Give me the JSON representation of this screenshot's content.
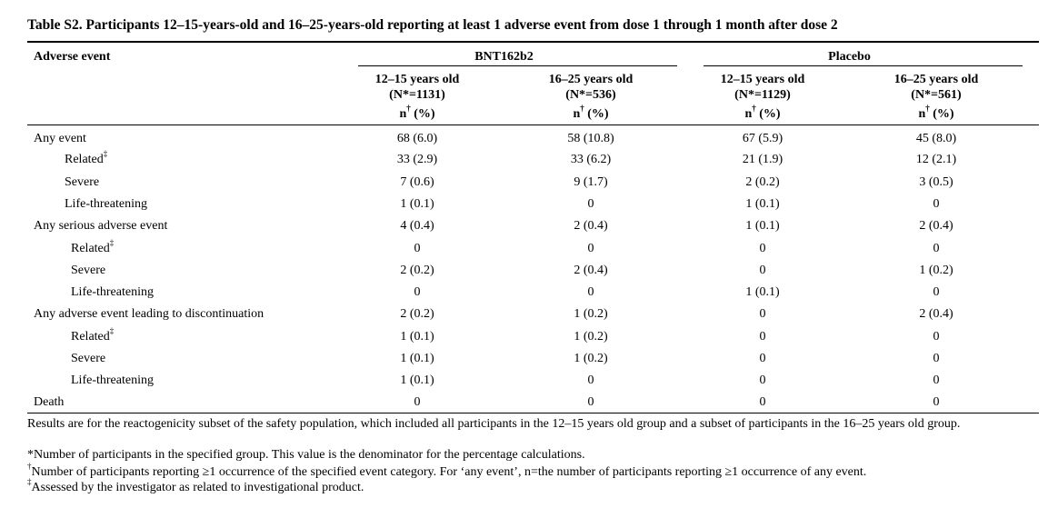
{
  "title": "Table S2. Participants 12–15-years-old and 16–25-years-old reporting at least 1 adverse event from dose 1 through 1 month after dose 2",
  "header": {
    "adverse_event_label": "Adverse event",
    "group_bnt": "BNT162b2",
    "group_placebo": "Placebo",
    "columns": [
      {
        "age": "12–15 years old",
        "n_total": "(N*=1131)",
        "stat_label": "n",
        "stat_sup": "†",
        "stat_pct": " (%)"
      },
      {
        "age": "16–25 years old",
        "n_total": "(N*=536)",
        "stat_label": "n",
        "stat_sup": "†",
        "stat_pct": " (%)"
      },
      {
        "age": "12–15 years old",
        "n_total": "(N*=1129)",
        "stat_label": "n",
        "stat_sup": "†",
        "stat_pct": " (%)"
      },
      {
        "age": "16–25 years old",
        "n_total": "(N*=561)",
        "stat_label": "n",
        "stat_sup": "†",
        "stat_pct": " (%)"
      }
    ]
  },
  "rows": [
    {
      "label": "Any event",
      "sup": "",
      "values": [
        "68 (6.0)",
        "58 (10.8)",
        "67 (5.9)",
        "45 (8.0)"
      ]
    },
    {
      "label": "Related",
      "sup": "‡",
      "values": [
        "33 (2.9)",
        "33 (6.2)",
        "21 (1.9)",
        "12 (2.1)"
      ]
    },
    {
      "label": "Severe",
      "sup": "",
      "values": [
        "7 (0.6)",
        "9 (1.7)",
        "2 (0.2)",
        "3 (0.5)"
      ]
    },
    {
      "label": "Life-threatening",
      "sup": "",
      "values": [
        "1 (0.1)",
        "0",
        "1 (0.1)",
        "0"
      ]
    },
    {
      "label": "Any serious adverse event",
      "sup": "",
      "values": [
        "4 (0.4)",
        "2 (0.4)",
        "1 (0.1)",
        "2 (0.4)"
      ]
    },
    {
      "label": "Related",
      "sup": "‡",
      "values": [
        "0",
        "0",
        "0",
        "0"
      ]
    },
    {
      "label": "Severe",
      "sup": "",
      "values": [
        "2 (0.2)",
        "2 (0.4)",
        "0",
        "1 (0.2)"
      ]
    },
    {
      "label": "Life-threatening",
      "sup": "",
      "values": [
        "0",
        "0",
        "1 (0.1)",
        "0"
      ]
    },
    {
      "label": "Any adverse event leading to discontinuation",
      "sup": "",
      "values": [
        "2 (0.2)",
        "1 (0.2)",
        "0",
        "2 (0.4)"
      ]
    },
    {
      "label": "Related",
      "sup": "‡",
      "values": [
        "1 (0.1)",
        "1 (0.2)",
        "0",
        "0"
      ]
    },
    {
      "label": "Severe",
      "sup": "",
      "values": [
        "1 (0.1)",
        "1 (0.2)",
        "0",
        "0"
      ]
    },
    {
      "label": "Life-threatening",
      "sup": "",
      "values": [
        "1 (0.1)",
        "0",
        "0",
        "0"
      ]
    },
    {
      "label": "Death",
      "sup": "",
      "values": [
        "0",
        "0",
        "0",
        "0"
      ]
    }
  ],
  "footnotes": {
    "results": "Results are for the reactogenicity subset of the safety population, which included all participants in the 12–15 years old group and a subset of participants in the 16–25 years old group.",
    "star": "*Number of participants in the specified group. This value is the denominator for the percentage calculations.",
    "dagger_mark": "†",
    "dagger": "Number of participants reporting ≥1 occurrence of the specified event category. For ‘any event’, n=the number of participants reporting ≥1 occurrence of any event.",
    "ddagger_mark": "‡",
    "ddagger": "Assessed by the investigator as related to investigational product."
  }
}
